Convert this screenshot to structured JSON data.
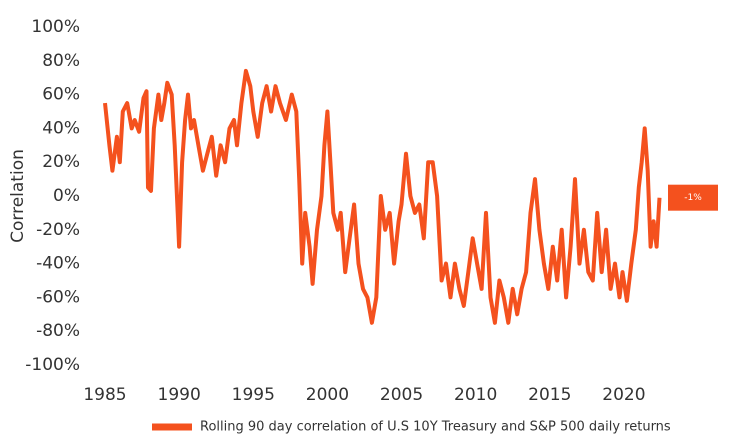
{
  "chart_data": {
    "type": "line",
    "y_label": "Correlation",
    "end_label": "-1%",
    "xlim": [
      1985,
      2022.5
    ],
    "xticks": [
      1985,
      1990,
      1995,
      2000,
      2005,
      2010,
      2015,
      2020
    ],
    "ylim": [
      -100,
      100
    ],
    "yticks": [
      {
        "value": -100,
        "label": "-100%"
      },
      {
        "value": -80,
        "label": "-80%"
      },
      {
        "value": -60,
        "label": "-60%"
      },
      {
        "value": -40,
        "label": "-40%"
      },
      {
        "value": -20,
        "label": "-20%"
      },
      {
        "value": 0,
        "label": "0%"
      },
      {
        "value": 20,
        "label": "20%"
      },
      {
        "value": 40,
        "label": "40%"
      },
      {
        "value": 60,
        "label": "60%"
      },
      {
        "value": 80,
        "label": "80%"
      },
      {
        "value": 100,
        "label": "100%"
      }
    ],
    "grid": false,
    "legend": "bottom",
    "x": [
      1985.0,
      1985.3,
      1985.5,
      1985.8,
      1986.0,
      1986.2,
      1986.5,
      1986.8,
      1987.0,
      1987.3,
      1987.6,
      1987.8,
      1987.9,
      1988.1,
      1988.3,
      1988.6,
      1988.8,
      1989.0,
      1989.2,
      1989.5,
      1989.7,
      1989.9,
      1990.0,
      1990.2,
      1990.4,
      1990.6,
      1990.8,
      1991.0,
      1991.3,
      1991.6,
      1991.9,
      1992.2,
      1992.5,
      1992.8,
      1993.1,
      1993.4,
      1993.7,
      1993.9,
      1994.2,
      1994.5,
      1994.8,
      1995.0,
      1995.3,
      1995.6,
      1995.9,
      1996.2,
      1996.5,
      1996.8,
      1997.2,
      1997.6,
      1997.9,
      1998.1,
      1998.3,
      1998.5,
      1998.8,
      1999.0,
      1999.3,
      1999.6,
      1999.8,
      2000.0,
      2000.2,
      2000.4,
      2000.7,
      2000.9,
      2001.2,
      2001.5,
      2001.8,
      2002.1,
      2002.4,
      2002.7,
      2003.0,
      2003.3,
      2003.6,
      2003.9,
      2004.2,
      2004.5,
      2004.8,
      2005.0,
      2005.3,
      2005.6,
      2005.9,
      2006.2,
      2006.5,
      2006.8,
      2007.1,
      2007.4,
      2007.7,
      2008.0,
      2008.3,
      2008.6,
      2008.9,
      2009.2,
      2009.5,
      2009.8,
      2010.1,
      2010.4,
      2010.7,
      2011.0,
      2011.3,
      2011.6,
      2011.9,
      2012.2,
      2012.5,
      2012.8,
      2013.1,
      2013.4,
      2013.7,
      2014.0,
      2014.3,
      2014.6,
      2014.9,
      2015.2,
      2015.5,
      2015.8,
      2016.1,
      2016.4,
      2016.7,
      2017.0,
      2017.3,
      2017.6,
      2017.9,
      2018.2,
      2018.5,
      2018.8,
      2019.1,
      2019.4,
      2019.7,
      2019.9,
      2020.2,
      2020.5,
      2020.8,
      2021.0,
      2021.2,
      2021.4,
      2021.6,
      2021.8,
      2022.0,
      2022.2,
      2022.4
    ],
    "series": [
      {
        "name": "Rolling 90 day correlation of U.S 10Y Treasury and S&P 500 daily returns",
        "color": "#f4511e",
        "values": [
          55,
          30,
          15,
          35,
          20,
          50,
          55,
          40,
          45,
          38,
          58,
          62,
          5,
          3,
          40,
          60,
          45,
          55,
          67,
          60,
          30,
          -10,
          -30,
          20,
          45,
          60,
          40,
          45,
          30,
          15,
          25,
          35,
          12,
          30,
          20,
          40,
          45,
          30,
          55,
          74,
          65,
          50,
          35,
          55,
          65,
          50,
          65,
          55,
          45,
          60,
          50,
          10,
          -40,
          -10,
          -30,
          -52,
          -20,
          0,
          30,
          50,
          20,
          -10,
          -20,
          -10,
          -45,
          -25,
          -5,
          -40,
          -55,
          -60,
          -75,
          -60,
          0,
          -20,
          -10,
          -40,
          -15,
          -5,
          25,
          0,
          -10,
          -5,
          -25,
          20,
          20,
          0,
          -50,
          -40,
          -60,
          -40,
          -55,
          -65,
          -45,
          -25,
          -40,
          -55,
          -10,
          -60,
          -75,
          -50,
          -60,
          -75,
          -55,
          -70,
          -55,
          -45,
          -10,
          10,
          -20,
          -40,
          -55,
          -30,
          -50,
          -20,
          -60,
          -30,
          10,
          -40,
          -20,
          -45,
          -50,
          -10,
          -45,
          -20,
          -55,
          -40,
          -60,
          -45,
          -62,
          -40,
          -20,
          5,
          20,
          40,
          15,
          -30,
          -15,
          -30,
          -1
        ]
      }
    ]
  }
}
